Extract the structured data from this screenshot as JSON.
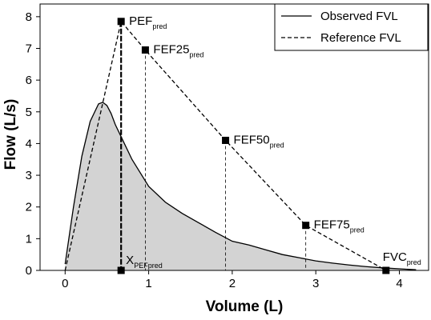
{
  "chart_data": {
    "type": "line",
    "xlabel": "Volume (L)",
    "ylabel": "Flow (L/s)",
    "xlim": [
      -0.3,
      4.35
    ],
    "ylim": [
      0,
      8.4
    ],
    "xticks": [
      0,
      1,
      2,
      3,
      4
    ],
    "yticks": [
      0,
      1,
      2,
      3,
      4,
      5,
      6,
      7,
      8
    ],
    "grid": false,
    "legend_position": "top-right",
    "series": [
      {
        "name": "Observed FVL",
        "style": "solid",
        "fill": "#d3d3d3",
        "x": [
          0.0,
          0.1,
          0.2,
          0.3,
          0.4,
          0.45,
          0.5,
          0.55,
          0.6,
          0.7,
          0.8,
          1.0,
          1.2,
          1.4,
          1.6,
          1.8,
          2.0,
          2.2,
          2.4,
          2.6,
          2.8,
          3.0,
          3.2,
          3.4,
          3.6,
          3.8,
          4.0,
          4.2
        ],
        "y": [
          0.2,
          2.0,
          3.6,
          4.7,
          5.25,
          5.3,
          5.2,
          4.95,
          4.6,
          4.05,
          3.5,
          2.65,
          2.15,
          1.8,
          1.5,
          1.2,
          0.92,
          0.8,
          0.65,
          0.5,
          0.4,
          0.3,
          0.23,
          0.17,
          0.12,
          0.08,
          0.05,
          0.02
        ]
      },
      {
        "name": "Reference FVL",
        "style": "dashed",
        "x": [
          0.0,
          0.67,
          0.96,
          1.92,
          2.88,
          3.84
        ],
        "y": [
          0.0,
          7.85,
          6.95,
          4.1,
          1.42,
          0.0
        ]
      }
    ],
    "reference_points": [
      {
        "label": "PEF",
        "sub": "pred",
        "x": 0.67,
        "y": 7.85,
        "drop": true
      },
      {
        "label": "FEF25",
        "sub": "pred",
        "x": 0.96,
        "y": 6.95,
        "drop": true
      },
      {
        "label": "FEF50",
        "sub": "pred",
        "x": 1.92,
        "y": 4.1,
        "drop": true
      },
      {
        "label": "FEF75",
        "sub": "pred",
        "x": 2.88,
        "y": 1.42,
        "drop": true
      },
      {
        "label": "FVC",
        "sub": "pred",
        "x": 3.84,
        "y": 0.0,
        "drop": false
      },
      {
        "label": "X",
        "sub": "PEFpred",
        "x": 0.67,
        "y": 0.0,
        "drop": false
      }
    ]
  }
}
